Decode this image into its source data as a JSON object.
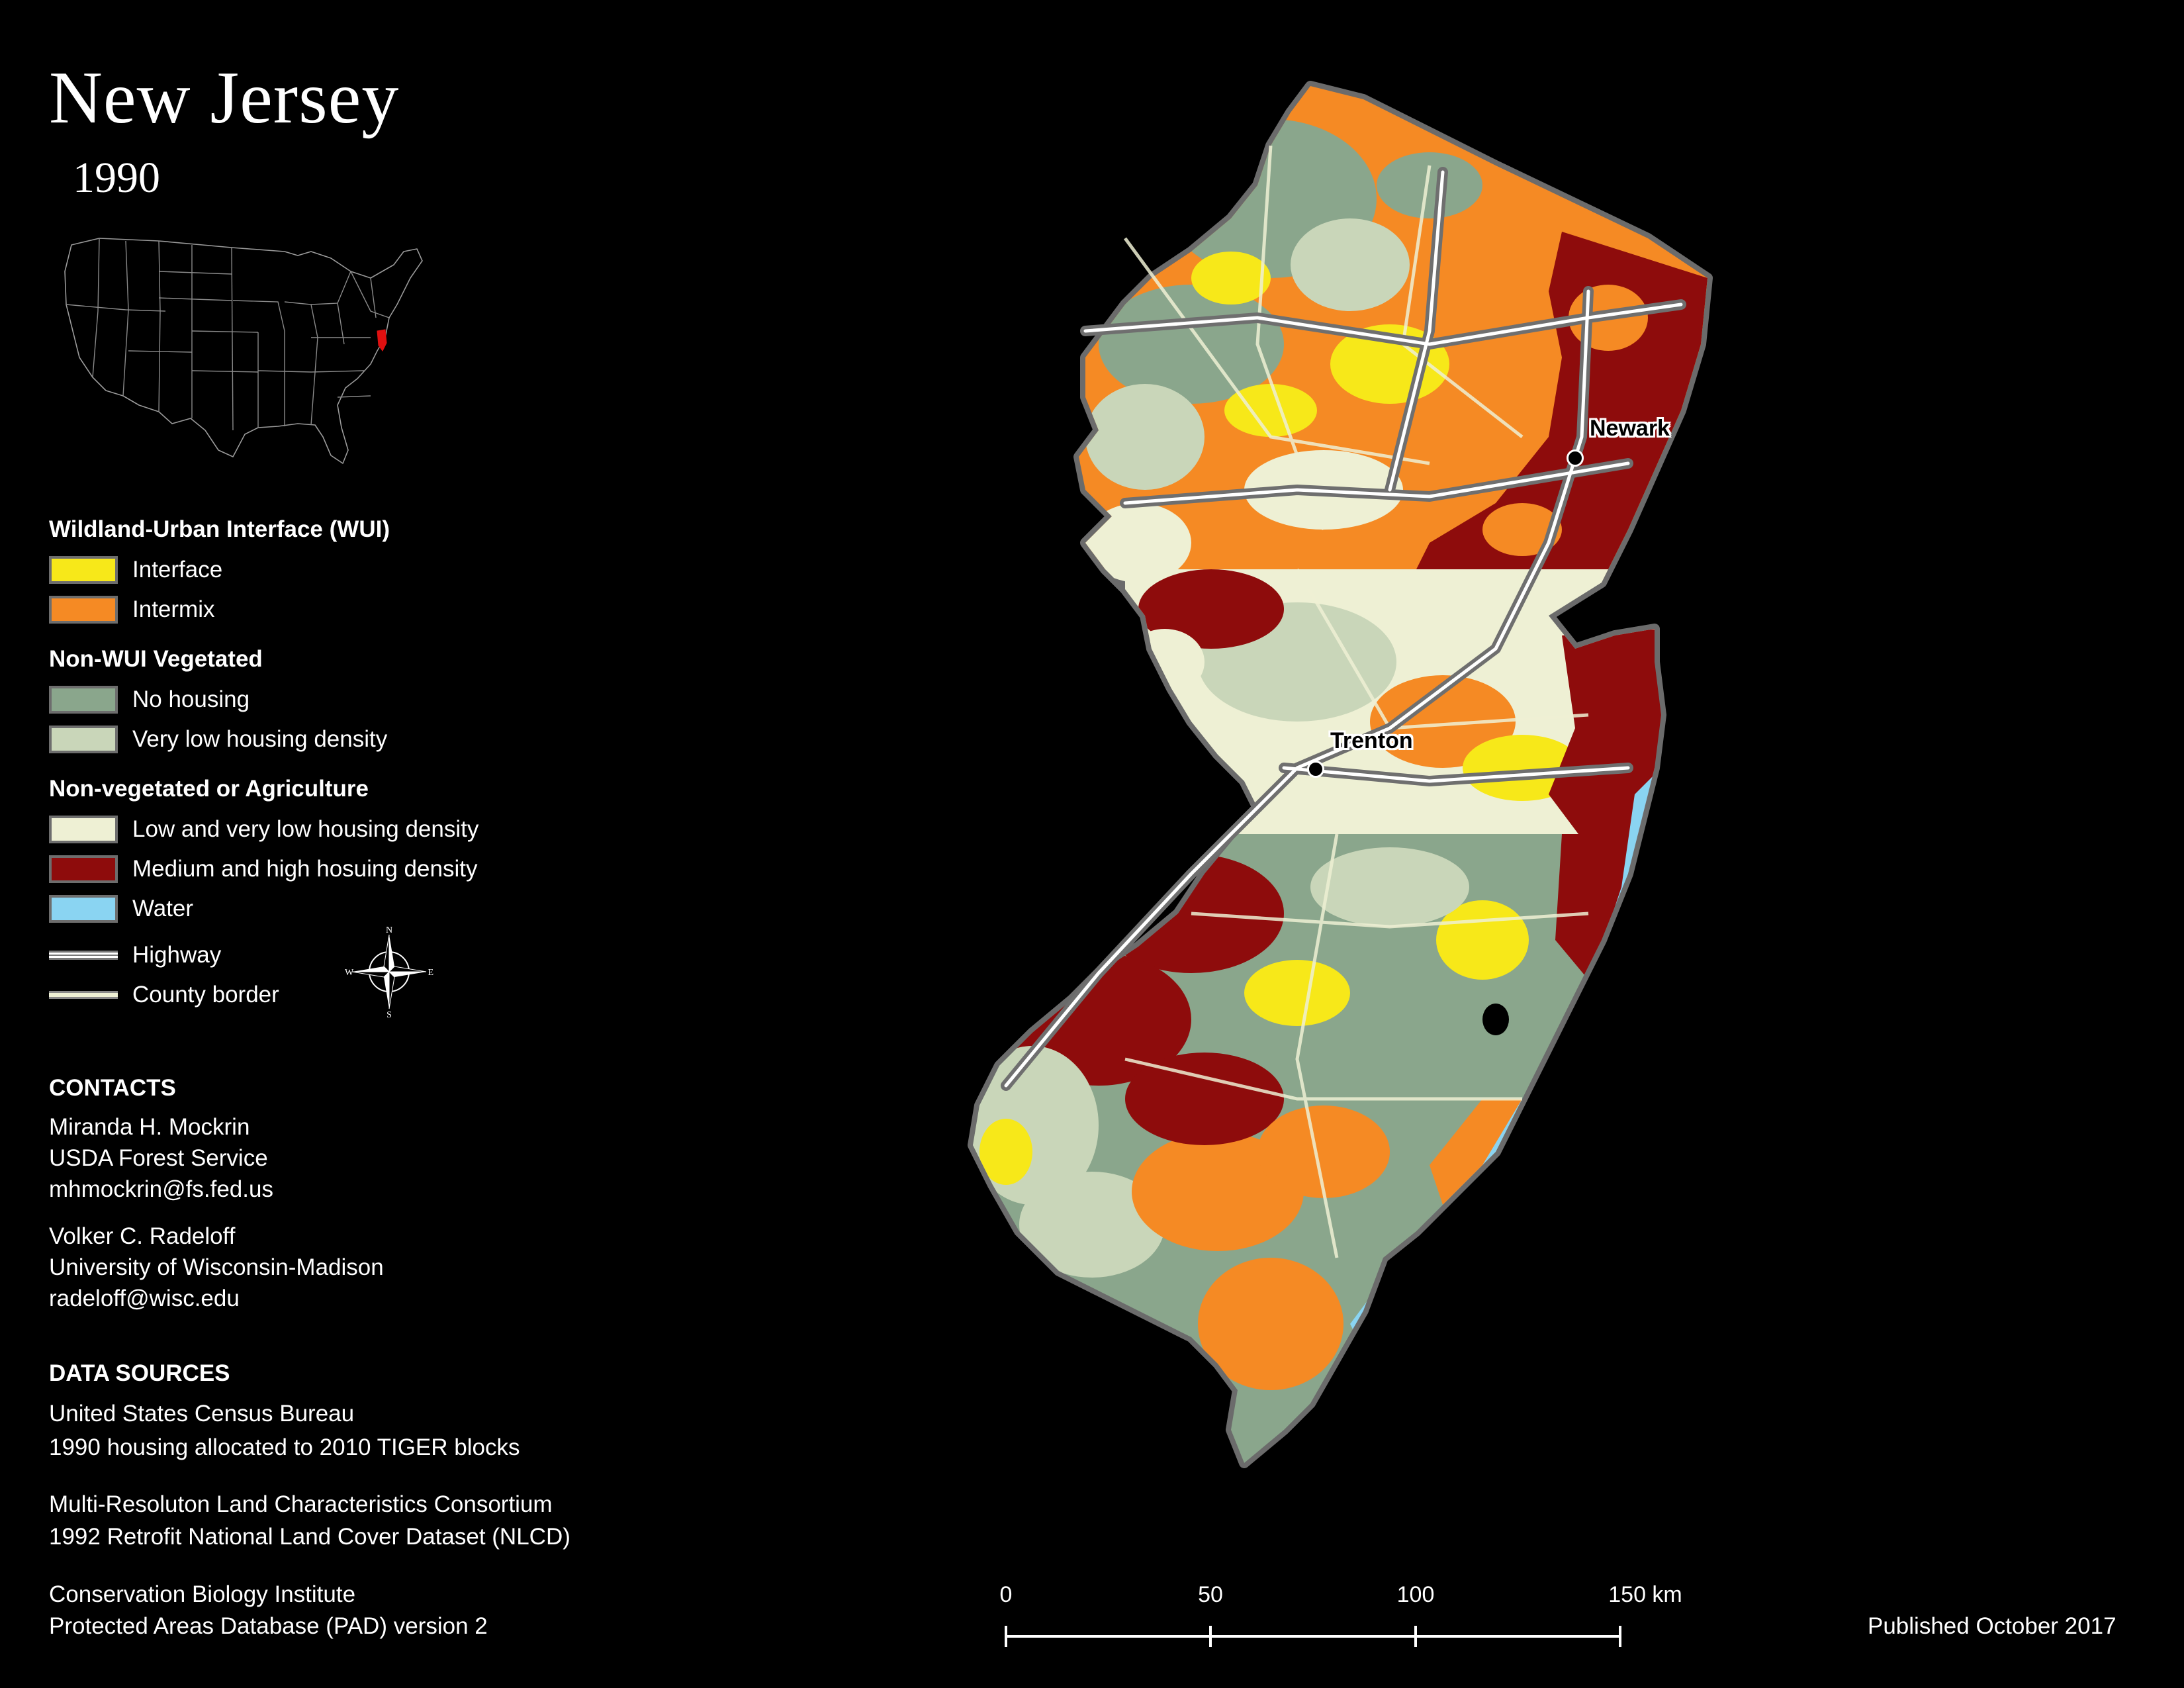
{
  "title": "New Jersey",
  "year": "1990",
  "legend": {
    "wui_heading": "Wildland-Urban Interface (WUI)",
    "nonwui_heading": "Non-WUI Vegetated",
    "nonveg_heading": "Non-vegetated or Agriculture",
    "items": [
      {
        "label": "Interface",
        "color": "#f7e819"
      },
      {
        "label": "Intermix",
        "color": "#f58a24"
      },
      {
        "label": "No housing",
        "color": "#8aa68c"
      },
      {
        "label": "Very low housing density",
        "color": "#c9d6b9"
      },
      {
        "label": "Low and very low housing density",
        "color": "#eef0d4"
      },
      {
        "label": "Medium and high hosuing density",
        "color": "#8e0c0c"
      },
      {
        "label": "Water",
        "color": "#8ad4f2"
      },
      {
        "label": "Highway",
        "color": "#ffffff"
      },
      {
        "label": "County border",
        "color": "#e8ecd0"
      }
    ]
  },
  "compass": {
    "n": "N",
    "s": "S",
    "e": "E",
    "w": "W"
  },
  "contacts": {
    "heading": "CONTACTS",
    "people": [
      {
        "name": "Miranda H. Mockrin",
        "org": "USDA Forest Service",
        "email": "mhmockrin@fs.fed.us"
      },
      {
        "name": "Volker C. Radeloff",
        "org": "University of Wisconsin-Madison",
        "email": "radeloff@wisc.edu"
      }
    ]
  },
  "data_sources": {
    "heading": "DATA SOURCES",
    "lines": [
      "United States Census Bureau",
      "1990 housing allocated to 2010 TIGER blocks",
      "Multi-Resoluton Land Characteristics Consortium",
      "1992 Retrofit National Land Cover Dataset (NLCD)",
      "Conservation Biology Institute",
      "Protected Areas Database (PAD) version 2"
    ]
  },
  "cities": [
    {
      "name": "Newark"
    },
    {
      "name": "Trenton"
    }
  ],
  "scale": {
    "labels": [
      "0",
      "50",
      "100",
      "150 km"
    ]
  },
  "published": "Published October 2017"
}
